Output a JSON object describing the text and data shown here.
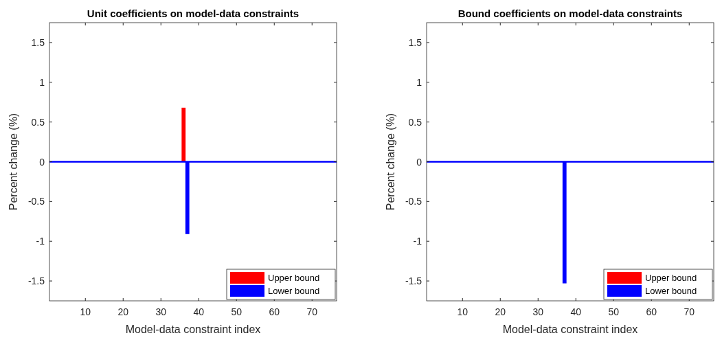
{
  "chart_data": [
    {
      "type": "bar",
      "title": "Unit coefficients on model-data constraints",
      "xlabel": "Model-data constraint index",
      "ylabel": "Percent change (%)",
      "categories": [
        null,
        null,
        null,
        null,
        null,
        null,
        null,
        null,
        null,
        "10",
        null,
        null,
        null,
        null,
        null,
        null,
        null,
        null,
        null,
        "20",
        null,
        null,
        null,
        null,
        null,
        null,
        null,
        null,
        null,
        "30",
        null,
        null,
        null,
        null,
        null,
        null,
        null,
        null,
        null,
        "40",
        null,
        null,
        null,
        null,
        null,
        null,
        null,
        null,
        null,
        "50",
        null,
        null,
        null,
        null,
        null,
        null,
        null,
        null,
        null,
        "60",
        null,
        null,
        null,
        null,
        null,
        null,
        null,
        null,
        null,
        "70",
        null,
        null,
        null,
        null,
        null,
        null
      ],
      "ylim": [
        -1.75,
        1.75
      ],
      "yticks": [
        -1.5,
        -1,
        -0.5,
        0,
        0.5,
        1,
        1.5
      ],
      "legend": "bottom right",
      "ref_lines": [
        {
          "axis": "y",
          "value": 0,
          "color": "#0000ff"
        }
      ],
      "series": [
        {
          "name": "Upper bound",
          "color": "#ff0000",
          "values": [
            null,
            null,
            null,
            null,
            null,
            null,
            null,
            null,
            null,
            null,
            null,
            null,
            null,
            null,
            null,
            null,
            null,
            null,
            null,
            null,
            null,
            null,
            null,
            null,
            null,
            null,
            null,
            null,
            null,
            null,
            null,
            null,
            null,
            null,
            null,
            0.68,
            null,
            null,
            null,
            null,
            null,
            null,
            null,
            null,
            null,
            null,
            null,
            null,
            null,
            null,
            null,
            null,
            null,
            null,
            null,
            null,
            null,
            null,
            null,
            null,
            null,
            null,
            null,
            null,
            null,
            null,
            null,
            null,
            null,
            null,
            null,
            null,
            null,
            null,
            null,
            null
          ]
        },
        {
          "name": "Lower bound",
          "color": "#0000ff",
          "values": [
            null,
            null,
            null,
            null,
            null,
            null,
            null,
            null,
            null,
            null,
            null,
            null,
            null,
            null,
            null,
            null,
            null,
            null,
            null,
            null,
            null,
            null,
            null,
            null,
            null,
            null,
            null,
            null,
            null,
            null,
            null,
            null,
            null,
            null,
            null,
            null,
            -0.91,
            null,
            null,
            null,
            null,
            null,
            null,
            null,
            null,
            null,
            null,
            null,
            null,
            null,
            null,
            null,
            null,
            null,
            null,
            null,
            null,
            null,
            null,
            null,
            null,
            null,
            null,
            null,
            null,
            null,
            null,
            null,
            null,
            null,
            null,
            null,
            null,
            null,
            null,
            null
          ]
        }
      ]
    },
    {
      "type": "bar",
      "title": "Bound coefficients on model-data constraints",
      "xlabel": "Model-data constraint index",
      "ylabel": "Percent change (%)",
      "categories": [
        null,
        null,
        null,
        null,
        null,
        null,
        null,
        null,
        null,
        "10",
        null,
        null,
        null,
        null,
        null,
        null,
        null,
        null,
        null,
        "20",
        null,
        null,
        null,
        null,
        null,
        null,
        null,
        null,
        null,
        "30",
        null,
        null,
        null,
        null,
        null,
        null,
        null,
        null,
        null,
        "40",
        null,
        null,
        null,
        null,
        null,
        null,
        null,
        null,
        null,
        "50",
        null,
        null,
        null,
        null,
        null,
        null,
        null,
        null,
        null,
        "60",
        null,
        null,
        null,
        null,
        null,
        null,
        null,
        null,
        null,
        "70",
        null,
        null,
        null,
        null,
        null,
        null
      ],
      "ylim": [
        -1.75,
        1.75
      ],
      "yticks": [
        -1.5,
        -1,
        -0.5,
        0,
        0.5,
        1,
        1.5
      ],
      "legend": "bottom right",
      "ref_lines": [
        {
          "axis": "y",
          "value": 0,
          "color": "#0000ff"
        }
      ],
      "series": [
        {
          "name": "Upper bound",
          "color": "#ff0000",
          "values": [
            null,
            null,
            null,
            null,
            null,
            null,
            null,
            null,
            null,
            null,
            null,
            null,
            null,
            null,
            null,
            null,
            null,
            null,
            null,
            null,
            null,
            null,
            null,
            null,
            null,
            null,
            null,
            null,
            null,
            null,
            null,
            null,
            null,
            null,
            null,
            null,
            null,
            null,
            null,
            null,
            null,
            null,
            null,
            null,
            null,
            null,
            null,
            null,
            null,
            null,
            null,
            null,
            null,
            null,
            null,
            null,
            null,
            null,
            null,
            null,
            null,
            null,
            null,
            null,
            null,
            null,
            null,
            null,
            null,
            null,
            null,
            null,
            null,
            null,
            null,
            null
          ]
        },
        {
          "name": "Lower bound",
          "color": "#0000ff",
          "values": [
            null,
            null,
            null,
            null,
            null,
            null,
            null,
            null,
            null,
            null,
            null,
            null,
            null,
            null,
            null,
            null,
            null,
            null,
            null,
            null,
            null,
            null,
            null,
            null,
            null,
            null,
            null,
            null,
            null,
            null,
            null,
            null,
            null,
            null,
            null,
            null,
            -1.53,
            null,
            null,
            null,
            null,
            null,
            null,
            null,
            null,
            null,
            null,
            null,
            null,
            null,
            null,
            null,
            null,
            null,
            null,
            null,
            null,
            null,
            null,
            null,
            null,
            null,
            null,
            null,
            null,
            null,
            null,
            null,
            null,
            null,
            null,
            null,
            null,
            null,
            null,
            null
          ]
        }
      ]
    }
  ]
}
